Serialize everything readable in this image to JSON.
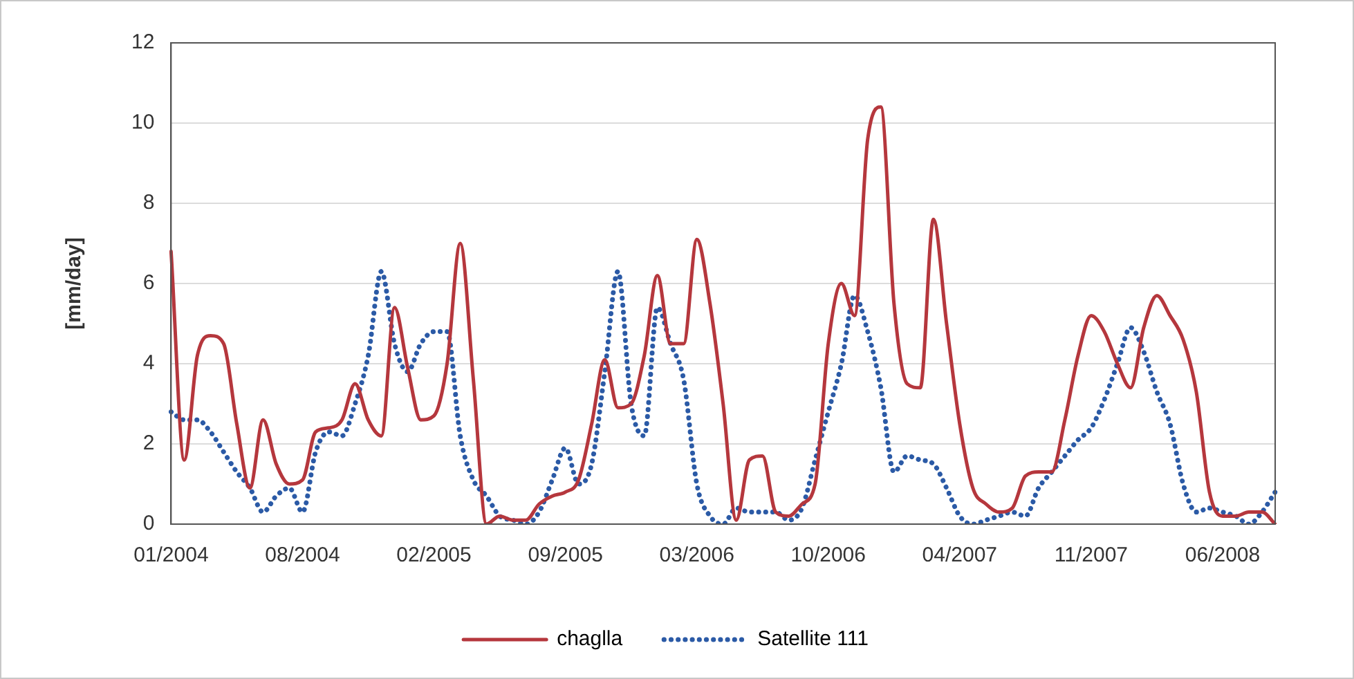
{
  "chart_data": {
    "type": "line",
    "ylabel": "[mm/day]",
    "categories": [
      "01/2004",
      null,
      null,
      null,
      null,
      null,
      null,
      null,
      null,
      null,
      "08/2004",
      null,
      null,
      null,
      null,
      null,
      null,
      null,
      null,
      null,
      "02/2005",
      null,
      null,
      null,
      null,
      null,
      null,
      null,
      null,
      null,
      "09/2005",
      null,
      null,
      null,
      null,
      null,
      null,
      null,
      null,
      null,
      "03/2006",
      null,
      null,
      null,
      null,
      null,
      null,
      null,
      null,
      null,
      "10/2006",
      null,
      null,
      null,
      null,
      null,
      null,
      null,
      null,
      null,
      "04/2007",
      null,
      null,
      null,
      null,
      null,
      null,
      null,
      null,
      null,
      "11/2007",
      null,
      null,
      null,
      null,
      null,
      null,
      null,
      null,
      null,
      "06/2008",
      null,
      null,
      null,
      null
    ],
    "series": [
      {
        "name": "chaglla",
        "color": "#b5373d",
        "line_style": "solid",
        "values": [
          6.8,
          1.6,
          4.2,
          4.7,
          4.5,
          2.5,
          0.9,
          2.6,
          1.5,
          1.0,
          1.1,
          2.3,
          2.4,
          2.6,
          3.5,
          2.6,
          2.2,
          5.4,
          3.9,
          2.6,
          2.7,
          4.0,
          7.0,
          3.6,
          0,
          0.2,
          0.1,
          0.1,
          0.5,
          0.7,
          0.8,
          1.1,
          2.5,
          4.1,
          2.9,
          3.0,
          4.2,
          6.2,
          4.5,
          4.5,
          7.1,
          5.5,
          3.0,
          0.1,
          1.6,
          1.7,
          0.3,
          0.2,
          0.5,
          1.0,
          4.5,
          6.0,
          5.2,
          9.6,
          10.4,
          5.5,
          3.5,
          3.4,
          7.6,
          5.0,
          2.5,
          0.9,
          0.5,
          0.3,
          0.4,
          1.2,
          1.3,
          1.3,
          2.6,
          4.2,
          5.2,
          4.8,
          4.0,
          3.4,
          4.9,
          5.7,
          5.2,
          4.6,
          3.3,
          0.8,
          0.2,
          0.2,
          0.3,
          0.3,
          0
        ]
      },
      {
        "name": "Satellite 111",
        "color": "#2b5aa6",
        "line_style": "dotted",
        "values": [
          2.8,
          2.6,
          2.6,
          2.3,
          1.8,
          1.3,
          0.9,
          0.3,
          0.7,
          0.9,
          0.3,
          1.8,
          2.3,
          2.2,
          3.0,
          4.2,
          6.3,
          4.5,
          3.8,
          4.5,
          4.8,
          4.8,
          2.2,
          1.1,
          0.7,
          0.2,
          0.1,
          0,
          0.3,
          1.1,
          1.9,
          1.0,
          1.5,
          3.8,
          6.3,
          3.0,
          2.2,
          5.4,
          4.5,
          3.6,
          1.0,
          0.2,
          0,
          0.4,
          0.3,
          0.3,
          0.3,
          0.1,
          0.4,
          1.6,
          2.8,
          4.0,
          5.7,
          4.8,
          3.4,
          1.3,
          1.7,
          1.6,
          1.5,
          0.9,
          0.2,
          0,
          0.1,
          0.2,
          0.3,
          0.2,
          0.9,
          1.3,
          1.7,
          2.1,
          2.4,
          3.1,
          4.0,
          4.9,
          4.3,
          3.3,
          2.5,
          1.0,
          0.3,
          0.4,
          0.3,
          0.2,
          0,
          0.3,
          0.8
        ]
      }
    ],
    "ylim": [
      0,
      12
    ],
    "yticks": [
      0,
      2,
      4,
      6,
      8,
      10,
      12
    ],
    "grid": "y",
    "legend": "bottom",
    "marker": "none"
  }
}
